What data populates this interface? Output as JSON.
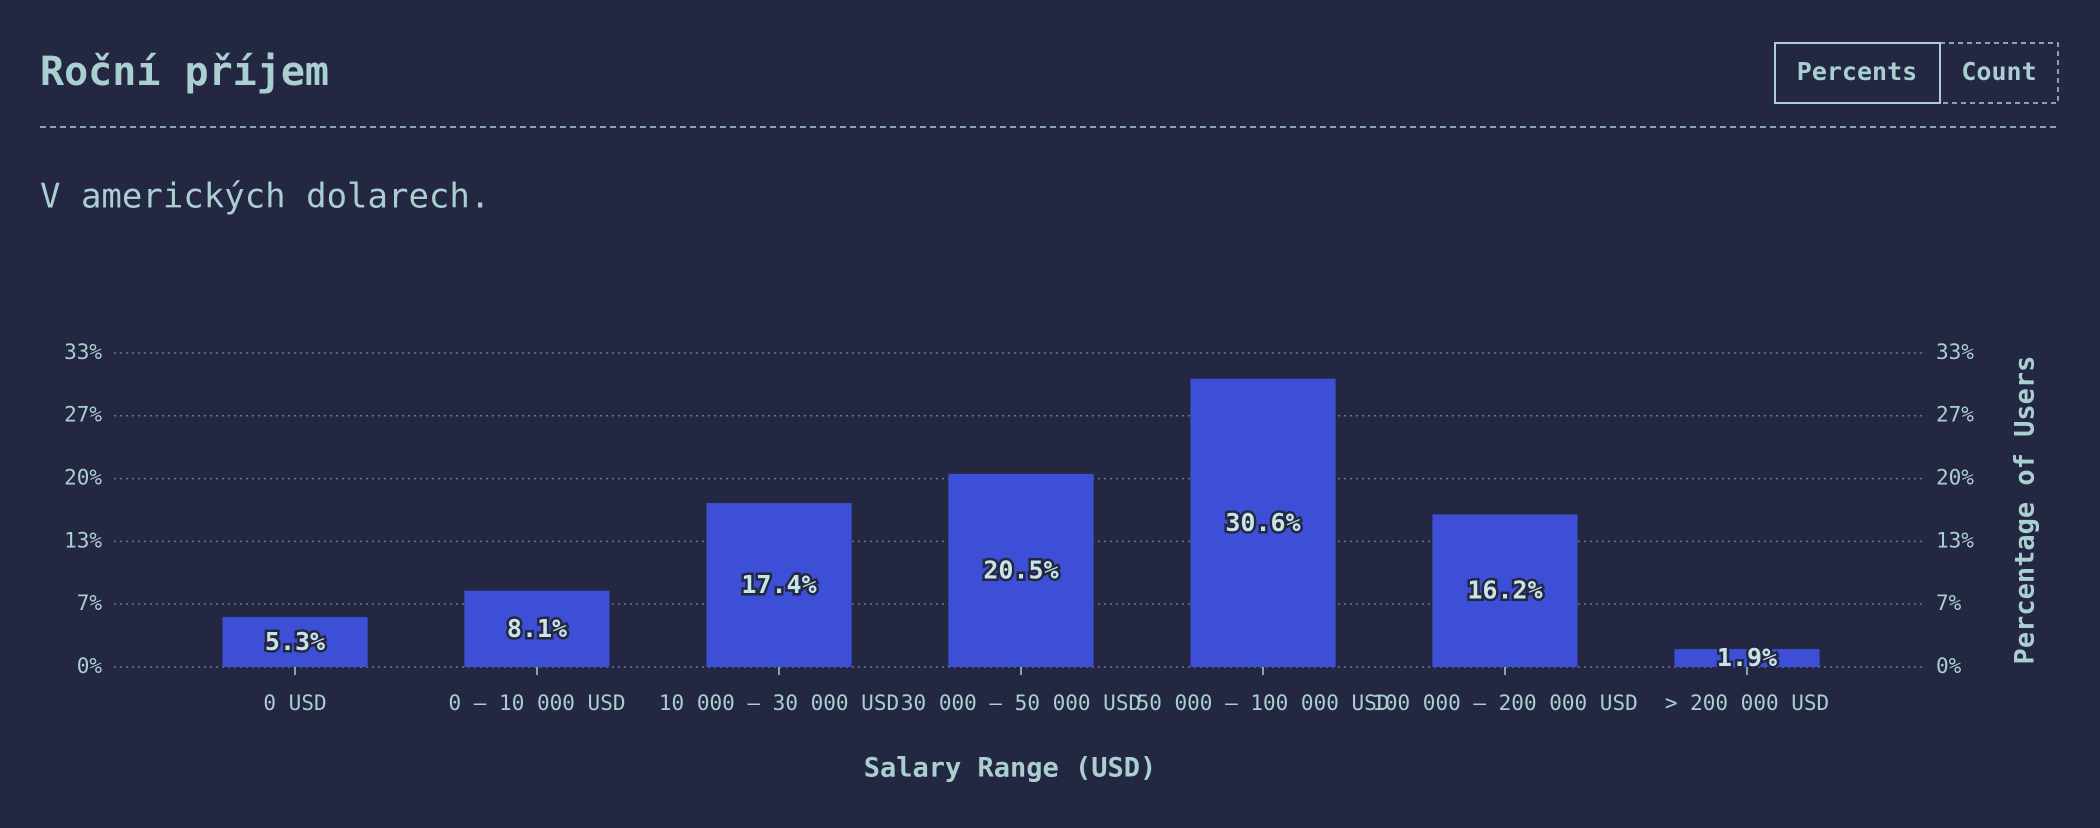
{
  "header": {
    "title": "Roční příjem",
    "subtitle": "V amerických dolarech.",
    "controls": [
      "Percents",
      "Count"
    ]
  },
  "chart_data": {
    "type": "bar",
    "x_label": "Salary Range (USD)",
    "y_label": "Percentage of Users",
    "categories": [
      "0 USD",
      "0 – 10 000 USD",
      "10 000 – 30 000 USD",
      "30 000 – 50 000 USD",
      "50 000 – 100 000 USD",
      "100 000 – 200 000 USD",
      "> 200 000 USD"
    ],
    "values": [
      5.3,
      8.1,
      17.4,
      20.5,
      30.6,
      16.2,
      1.9
    ],
    "value_labels": [
      "5.3%",
      "8.1%",
      "17.4%",
      "20.5%",
      "30.6%",
      "16.2%",
      "1.9%"
    ],
    "color": "#3d4fd6",
    "ylim": [
      0,
      33.33
    ],
    "yticks": [
      {
        "value": 0,
        "label": "0%"
      },
      {
        "value": 6.67,
        "label": "7%"
      },
      {
        "value": 13.33,
        "label": "13%"
      },
      {
        "value": 20,
        "label": "20%"
      },
      {
        "value": 26.67,
        "label": "27%"
      },
      {
        "value": 33.33,
        "label": "33%"
      }
    ],
    "grid": true
  }
}
